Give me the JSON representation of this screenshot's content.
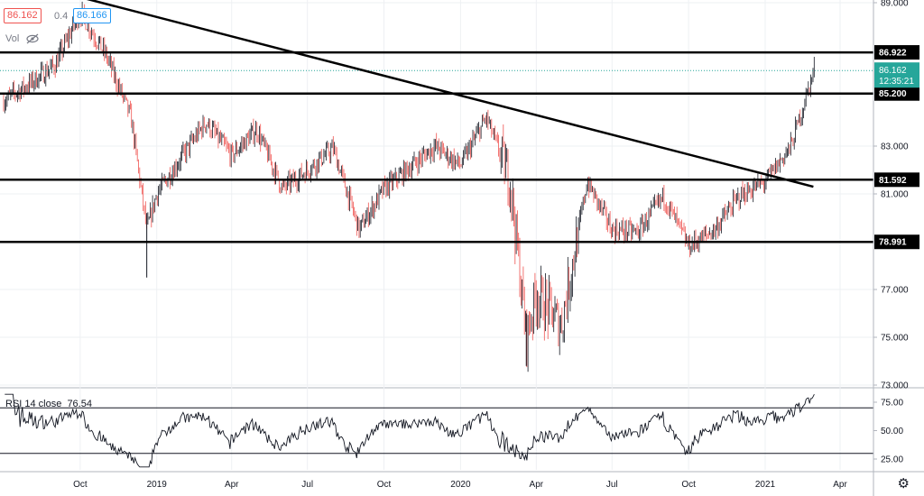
{
  "legend": {
    "price_left": "86.162",
    "change": "0.4",
    "price_right": "86.166",
    "vol_label": "Vol",
    "eye_icon": "eye-crossed-icon"
  },
  "rsi": {
    "label": "RSI 14 close",
    "value": "76.54",
    "ticks": [
      "75.00",
      "50.00",
      "25.00"
    ],
    "levels": [
      70,
      30
    ]
  },
  "colors": {
    "up": "#131722",
    "down": "#ef5350",
    "price_badge": "#26a69a",
    "level_line": "#000000",
    "trend_line": "#000000",
    "last_price_dotted": "#26a69a"
  },
  "chart_data": {
    "type": "candlestick",
    "ylim": [
      73.0,
      89.6
    ],
    "y_ticks": [
      "89.000",
      "83.000",
      "81.000",
      "77.000",
      "75.000",
      "73.000"
    ],
    "x_ticks": [
      "Oct",
      "2019",
      "Apr",
      "Jul",
      "Oct",
      "2020",
      "Apr",
      "Jul",
      "Oct",
      "2021",
      "Apr"
    ],
    "horizontal_levels": [
      "86.922",
      "85.200",
      "81.592",
      "78.991"
    ],
    "last_price": "86.162",
    "countdown": "12:35:21",
    "trend_line": [
      {
        "x": "2018-09",
        "y": 89.5
      },
      {
        "x": "2021-03",
        "y": 81.3
      }
    ],
    "series": [
      {
        "x": "2018-07",
        "y": 84.9
      },
      {
        "x": "2018-08",
        "y": 85.6
      },
      {
        "x": "2018-09",
        "y": 86.4
      },
      {
        "x": "2018-10",
        "y": 88.6
      },
      {
        "x": "2018-11",
        "y": 86.8
      },
      {
        "x": "2018-12",
        "y": 84.2
      },
      {
        "x": "2018-12-20",
        "y": 79.5
      },
      {
        "x": "2019-01",
        "y": 81.0
      },
      {
        "x": "2019-02",
        "y": 82.6
      },
      {
        "x": "2019-03",
        "y": 84.0
      },
      {
        "x": "2019-04",
        "y": 82.6
      },
      {
        "x": "2019-05",
        "y": 83.7
      },
      {
        "x": "2019-06",
        "y": 81.2
      },
      {
        "x": "2019-07",
        "y": 82.0
      },
      {
        "x": "2019-08",
        "y": 82.9
      },
      {
        "x": "2019-09",
        "y": 79.5
      },
      {
        "x": "2019-10",
        "y": 81.2
      },
      {
        "x": "2019-11",
        "y": 82.1
      },
      {
        "x": "2019-12",
        "y": 83.0
      },
      {
        "x": "2020-01",
        "y": 82.2
      },
      {
        "x": "2020-02",
        "y": 84.2
      },
      {
        "x": "2020-03",
        "y": 81.5
      },
      {
        "x": "2020-03-20",
        "y": 75.0
      },
      {
        "x": "2020-04",
        "y": 76.8
      },
      {
        "x": "2020-05",
        "y": 75.5
      },
      {
        "x": "2020-06",
        "y": 81.5
      },
      {
        "x": "2020-07",
        "y": 79.5
      },
      {
        "x": "2020-08",
        "y": 79.4
      },
      {
        "x": "2020-09",
        "y": 80.9
      },
      {
        "x": "2020-10",
        "y": 78.8
      },
      {
        "x": "2020-11",
        "y": 79.5
      },
      {
        "x": "2020-12",
        "y": 80.9
      },
      {
        "x": "2021-01",
        "y": 81.5
      },
      {
        "x": "2021-02",
        "y": 83.0
      },
      {
        "x": "2021-03",
        "y": 86.2
      }
    ]
  }
}
